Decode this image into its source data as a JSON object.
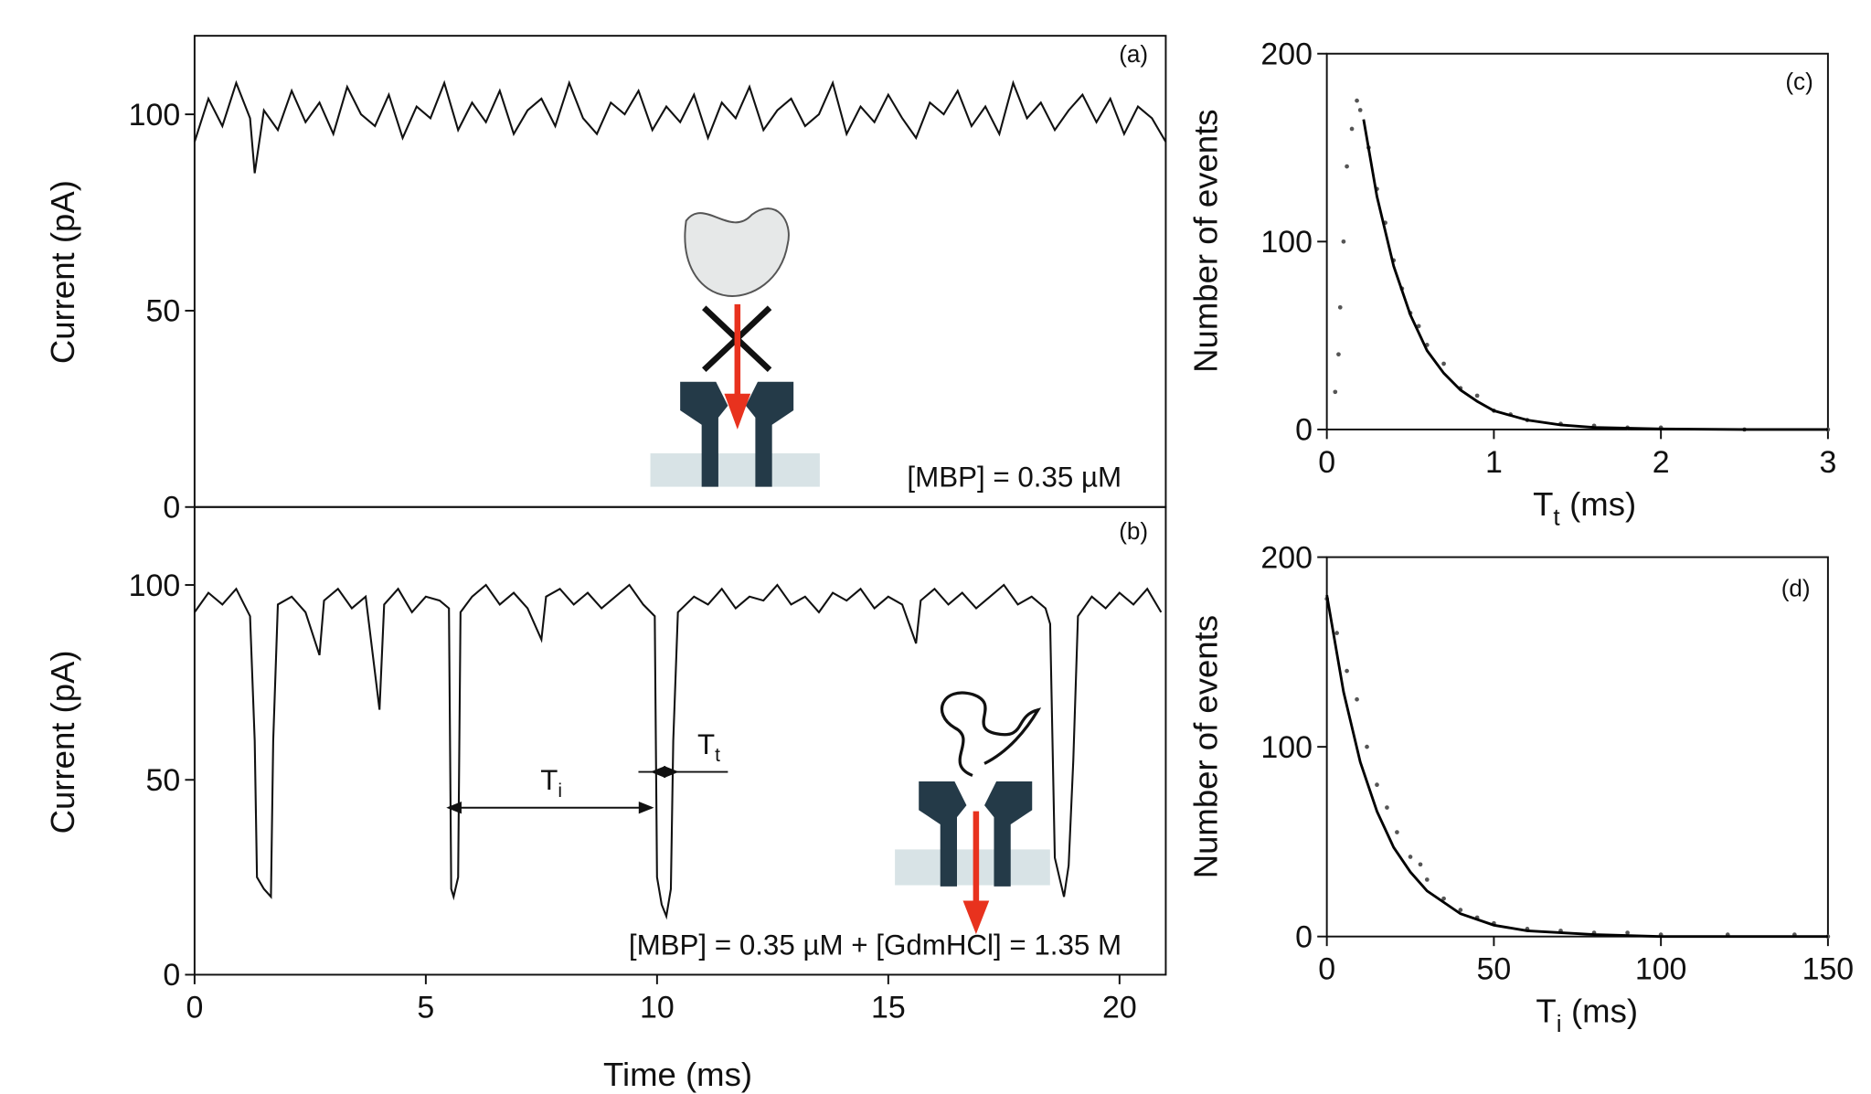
{
  "chart_data": [
    {
      "type": "line",
      "panel": "(a)",
      "ylabel": "Current (pA)",
      "annotation": "[MBP] = 0.35 µM",
      "color": "#111111",
      "xlim": [
        0,
        21
      ],
      "ylim": [
        0,
        120
      ],
      "yticks": [
        0,
        50,
        100
      ],
      "x": [
        0,
        0.3,
        0.6,
        0.9,
        1.2,
        1.3,
        1.5,
        1.8,
        2.1,
        2.4,
        2.7,
        3.0,
        3.3,
        3.6,
        3.9,
        4.2,
        4.5,
        4.8,
        5.1,
        5.4,
        5.7,
        6.0,
        6.3,
        6.6,
        6.9,
        7.2,
        7.5,
        7.8,
        8.1,
        8.4,
        8.7,
        9.0,
        9.3,
        9.6,
        9.9,
        10.2,
        10.5,
        10.8,
        11.1,
        11.4,
        11.7,
        12.0,
        12.3,
        12.6,
        12.9,
        13.2,
        13.5,
        13.8,
        14.1,
        14.4,
        14.7,
        15.0,
        15.3,
        15.6,
        15.9,
        16.2,
        16.5,
        16.8,
        17.1,
        17.4,
        17.7,
        18.0,
        18.3,
        18.6,
        18.9,
        19.2,
        19.5,
        19.8,
        20.1,
        20.4,
        20.7,
        21.0
      ],
      "values": [
        93,
        104,
        97,
        108,
        99,
        85,
        101,
        96,
        106,
        98,
        103,
        95,
        107,
        100,
        97,
        105,
        94,
        102,
        99,
        108,
        96,
        103,
        98,
        106,
        95,
        101,
        104,
        97,
        108,
        99,
        95,
        103,
        100,
        106,
        96,
        102,
        98,
        105,
        94,
        103,
        99,
        107,
        96,
        101,
        104,
        97,
        100,
        108,
        95,
        102,
        98,
        105,
        99,
        94,
        103,
        100,
        106,
        97,
        102,
        95,
        108,
        99,
        103,
        96,
        101,
        105,
        98,
        104,
        95,
        102,
        99,
        93
      ]
    },
    {
      "type": "line",
      "panel": "(b)",
      "ylabel": "Current (pA)",
      "xlabel": "Time (ms)",
      "annotation": "[MBP] = 0.35 µM + [GdmHCl] = 1.35 M",
      "dwell_labels": [
        {
          "symbol": "T",
          "subscript": "i"
        },
        {
          "symbol": "T",
          "subscript": "t"
        }
      ],
      "color": "#111111",
      "xlim": [
        0,
        21
      ],
      "ylim": [
        0,
        120
      ],
      "xticks": [
        0,
        5,
        10,
        15,
        20
      ],
      "yticks": [
        0,
        50,
        100
      ],
      "x": [
        0,
        0.3,
        0.6,
        0.9,
        1.2,
        1.3,
        1.35,
        1.5,
        1.65,
        1.7,
        1.8,
        2.1,
        2.4,
        2.7,
        2.8,
        3.1,
        3.4,
        3.7,
        4.0,
        4.1,
        4.4,
        4.7,
        5.0,
        5.3,
        5.5,
        5.55,
        5.6,
        5.7,
        5.75,
        6.0,
        6.3,
        6.6,
        6.9,
        7.2,
        7.5,
        7.6,
        7.9,
        8.2,
        8.5,
        8.8,
        9.1,
        9.4,
        9.7,
        9.95,
        10.0,
        10.1,
        10.2,
        10.3,
        10.35,
        10.45,
        10.8,
        11.1,
        11.4,
        11.7,
        12.0,
        12.3,
        12.6,
        12.9,
        13.2,
        13.5,
        13.8,
        14.1,
        14.4,
        14.7,
        15.0,
        15.3,
        15.6,
        15.7,
        16.0,
        16.3,
        16.6,
        16.9,
        17.2,
        17.5,
        17.8,
        18.1,
        18.4,
        18.5,
        18.6,
        18.7,
        18.8,
        18.9,
        19.0,
        19.1,
        19.4,
        19.7,
        20.0,
        20.3,
        20.6,
        20.9
      ],
      "values": [
        93,
        98,
        95,
        99,
        92,
        60,
        25,
        22,
        20,
        60,
        95,
        97,
        93,
        82,
        96,
        99,
        94,
        97,
        68,
        95,
        99,
        93,
        97,
        96,
        94,
        22,
        20,
        25,
        93,
        97,
        100,
        95,
        98,
        94,
        86,
        97,
        99,
        95,
        98,
        94,
        97,
        100,
        95,
        92,
        25,
        18,
        15,
        22,
        60,
        93,
        97,
        95,
        99,
        94,
        97,
        96,
        100,
        95,
        97,
        93,
        98,
        96,
        99,
        94,
        97,
        95,
        85,
        96,
        99,
        95,
        98,
        94,
        97,
        100,
        95,
        97,
        94,
        90,
        30,
        25,
        20,
        28,
        55,
        92,
        97,
        94,
        98,
        95,
        99,
        93
      ]
    },
    {
      "type": "scatter",
      "panel": "(c)",
      "ylabel": "Number of events",
      "xlabel": {
        "symbol": "T",
        "subscript": "t",
        "unit": "(ms)"
      },
      "xlim": [
        0,
        3
      ],
      "ylim": [
        0,
        200
      ],
      "xticks": [
        0,
        1,
        2,
        3
      ],
      "yticks": [
        0,
        100,
        200
      ],
      "series": [
        {
          "style": "points",
          "color": "#555555",
          "x": [
            0.05,
            0.07,
            0.08,
            0.1,
            0.12,
            0.15,
            0.18,
            0.2,
            0.25,
            0.3,
            0.35,
            0.4,
            0.45,
            0.5,
            0.55,
            0.6,
            0.7,
            0.8,
            0.9,
            1.0,
            1.1,
            1.2,
            1.4,
            1.6,
            1.8,
            2.0,
            2.5,
            3.0
          ],
          "values": [
            20,
            40,
            65,
            100,
            140,
            160,
            175,
            170,
            150,
            128,
            110,
            90,
            75,
            62,
            55,
            45,
            35,
            22,
            18,
            10,
            8,
            5,
            3,
            2,
            1,
            1,
            0,
            0
          ]
        },
        {
          "style": "line",
          "color": "#000000",
          "x": [
            0.22,
            0.3,
            0.4,
            0.5,
            0.6,
            0.7,
            0.8,
            0.9,
            1.0,
            1.2,
            1.4,
            1.6,
            2.0,
            2.5,
            3.0
          ],
          "values": [
            165,
            124,
            87,
            61,
            42,
            30,
            21,
            15,
            10,
            5,
            2.4,
            1.1,
            0.3,
            0,
            0
          ]
        }
      ]
    },
    {
      "type": "scatter",
      "panel": "(d)",
      "ylabel": "Number of events",
      "xlabel": {
        "symbol": "T",
        "subscript": "i",
        "unit": "(ms)"
      },
      "xlim": [
        0,
        150
      ],
      "ylim": [
        0,
        200
      ],
      "xticks": [
        0,
        50,
        100,
        150
      ],
      "yticks": [
        0,
        100,
        200
      ],
      "series": [
        {
          "style": "points",
          "color": "#555555",
          "x": [
            0,
            3,
            6,
            9,
            12,
            15,
            18,
            21,
            25,
            28,
            30,
            35,
            40,
            45,
            50,
            60,
            70,
            80,
            90,
            100,
            120,
            140,
            150
          ],
          "values": [
            178,
            160,
            140,
            125,
            100,
            80,
            68,
            55,
            42,
            38,
            30,
            20,
            14,
            10,
            7,
            4,
            3,
            2,
            2,
            1,
            1,
            1,
            0
          ]
        },
        {
          "style": "line",
          "color": "#000000",
          "x": [
            0,
            5,
            10,
            15,
            20,
            25,
            30,
            40,
            50,
            60,
            80,
            100,
            125,
            150
          ],
          "values": [
            180,
            129,
            92,
            66,
            47,
            34,
            24,
            12,
            6,
            3,
            1,
            0,
            0,
            0
          ]
        }
      ]
    }
  ]
}
